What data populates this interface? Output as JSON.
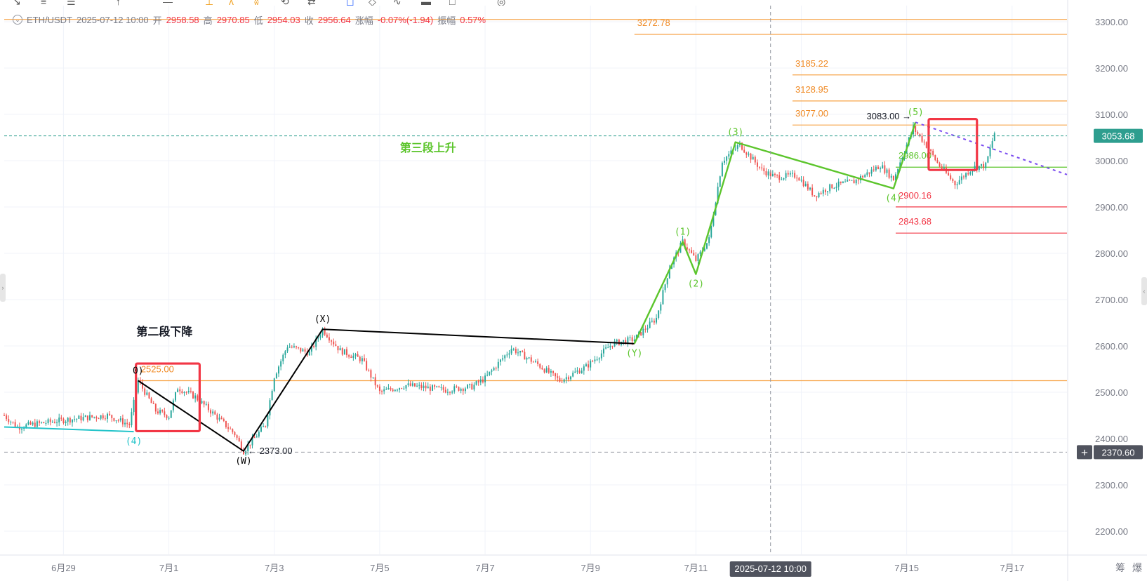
{
  "header": {
    "symbol": "ETH/USDT",
    "datetime": "2025-07-12 10:00",
    "open_label": "开",
    "open": "2958.58",
    "high_label": "高",
    "high": "2970.85",
    "low_label": "低",
    "low": "2954.03",
    "close_label": "收",
    "close": "2956.64",
    "change_label": "涨幅",
    "change": "-0.07%(-1.94)",
    "amplitude_label": "振幅",
    "amplitude": "0.57%"
  },
  "toolbar": {
    "icons": [
      "trend-line-icon",
      "horizontal-line-icon",
      "channel-icon",
      "cursor-icon",
      "brush-icon",
      "pattern-icon",
      "text-icon",
      "measure-icon",
      "undo-icon",
      "bookmark-icon",
      "alert-icon",
      "indicator-icon",
      "screenshot-icon",
      "settings-icon",
      "compare-icon",
      "calendar-icon"
    ]
  },
  "colors": {
    "up": "#26a69a",
    "down": "#ef5350",
    "fib_orange": "#f7a54a",
    "fib_text": "#f08a24",
    "support_red": "#f23645",
    "wave_green": "#5cc52c",
    "wave_black": "#000000",
    "trend_cyan": "#22c3c9",
    "box_red": "#f23645",
    "purple_dotted": "#7b4cf0",
    "grid": "#f0f3fa",
    "axis_text": "#787b86",
    "price_tag_green": "#2e9e8f",
    "crosshair_tag": "#50535e"
  },
  "chart_data": {
    "type": "candlestick",
    "title": "",
    "xlabel": "",
    "ylabel": "",
    "ylim": [
      2165,
      3320
    ],
    "y_ticks": [
      2200,
      2300,
      2400,
      2500,
      2600,
      2700,
      2800,
      2900,
      3000,
      3100,
      3200,
      3300
    ],
    "y_tick_labels": [
      "2200.00",
      "2300.00",
      "2400.00",
      "2500.00",
      "2600.00",
      "2700.00",
      "2800.00",
      "2900.00",
      "3000.00",
      "3100.00",
      "3200.00",
      "3300.00"
    ],
    "x_range": [
      "2025-06-27 21:00",
      "2025-07-18 01:00"
    ],
    "x_ticks": [
      {
        "t": "2025-06-29 00:00",
        "label": "6月29"
      },
      {
        "t": "2025-07-01 00:00",
        "label": "7月1"
      },
      {
        "t": "2025-07-03 00:00",
        "label": "7月3"
      },
      {
        "t": "2025-07-05 00:00",
        "label": "7月5"
      },
      {
        "t": "2025-07-07 00:00",
        "label": "7月7"
      },
      {
        "t": "2025-07-09 00:00",
        "label": "7月9"
      },
      {
        "t": "2025-07-11 00:00",
        "label": "7月11"
      },
      {
        "t": "2025-07-13 00:00",
        "label": "3"
      },
      {
        "t": "2025-07-15 00:00",
        "label": "7月15"
      },
      {
        "t": "2025-07-17 00:00",
        "label": "7月17"
      }
    ],
    "grid": true,
    "price_path": [
      [
        "2025-06-27 21:00",
        2450
      ],
      [
        "2025-06-28 03:00",
        2425
      ],
      [
        "2025-06-28 12:00",
        2432
      ],
      [
        "2025-06-29 00:00",
        2440
      ],
      [
        "2025-06-29 20:00",
        2450
      ],
      [
        "2025-06-30 06:00",
        2430
      ],
      [
        "2025-06-30 09:00",
        2500
      ],
      [
        "2025-06-30 10:00",
        2525
      ],
      [
        "2025-06-30 18:00",
        2460
      ],
      [
        "2025-07-01 00:00",
        2448
      ],
      [
        "2025-07-01 04:00",
        2510
      ],
      [
        "2025-07-01 12:00",
        2490
      ],
      [
        "2025-07-01 20:00",
        2455
      ],
      [
        "2025-07-02 06:00",
        2410
      ],
      [
        "2025-07-02 10:00",
        2373
      ],
      [
        "2025-07-02 20:00",
        2430
      ],
      [
        "2025-07-03 00:00",
        2535
      ],
      [
        "2025-07-03 06:00",
        2600
      ],
      [
        "2025-07-03 16:00",
        2585
      ],
      [
        "2025-07-03 22:00",
        2636
      ],
      [
        "2025-07-04 06:00",
        2590
      ],
      [
        "2025-07-04 16:00",
        2570
      ],
      [
        "2025-07-05 00:00",
        2500
      ],
      [
        "2025-07-05 12:00",
        2515
      ],
      [
        "2025-07-06 06:00",
        2505
      ],
      [
        "2025-07-06 18:00",
        2512
      ],
      [
        "2025-07-07 00:00",
        2530
      ],
      [
        "2025-07-07 12:00",
        2595
      ],
      [
        "2025-07-08 00:00",
        2560
      ],
      [
        "2025-07-08 10:00",
        2525
      ],
      [
        "2025-07-08 22:00",
        2555
      ],
      [
        "2025-07-09 10:00",
        2605
      ],
      [
        "2025-07-09 20:00",
        2615
      ],
      [
        "2025-07-10 06:00",
        2660
      ],
      [
        "2025-07-10 12:00",
        2770
      ],
      [
        "2025-07-10 18:00",
        2825
      ],
      [
        "2025-07-11 00:00",
        2785
      ],
      [
        "2025-07-11 06:00",
        2830
      ],
      [
        "2025-07-11 12:00",
        3000
      ],
      [
        "2025-07-11 20:00",
        3035
      ],
      [
        "2025-07-12 06:00",
        2980
      ],
      [
        "2025-07-12 12:00",
        2965
      ],
      [
        "2025-07-12 22:00",
        2968
      ],
      [
        "2025-07-13 06:00",
        2925
      ],
      [
        "2025-07-13 14:00",
        2945
      ],
      [
        "2025-07-14 00:00",
        2955
      ],
      [
        "2025-07-14 12:00",
        2990
      ],
      [
        "2025-07-14 18:00",
        2960
      ],
      [
        "2025-07-14 22:00",
        3010
      ],
      [
        "2025-07-15 03:00",
        3070
      ],
      [
        "2025-07-15 08:00",
        3040
      ],
      [
        "2025-07-15 14:00",
        2995
      ],
      [
        "2025-07-15 22:00",
        2950
      ],
      [
        "2025-07-16 06:00",
        2985
      ],
      [
        "2025-07-16 12:00",
        2990
      ],
      [
        "2025-07-16 16:00",
        3060
      ]
    ],
    "horizontal_levels": [
      {
        "price": 3272.78,
        "label": "3272.78",
        "from": "2025-07-09 20:00",
        "to": "2025-07-18 01:00",
        "kind": "fib"
      },
      {
        "price": 3305.0,
        "label": "",
        "from": "2025-06-27 21:00",
        "to": "2025-07-18 01:00",
        "kind": "fib"
      },
      {
        "price": 3185.22,
        "label": "3185.22",
        "from": "2025-07-12 20:00",
        "to": "2025-07-18 01:00",
        "kind": "fib"
      },
      {
        "price": 3128.95,
        "label": "3128.95",
        "from": "2025-07-12 20:00",
        "to": "2025-07-18 01:00",
        "kind": "fib"
      },
      {
        "price": 3077.0,
        "label": "3077.00",
        "from": "2025-07-12 20:00",
        "to": "2025-07-18 01:00",
        "kind": "fib"
      },
      {
        "price": 2525.0,
        "label": "2525.00",
        "from": "2025-06-30 10:00",
        "to": "2025-07-18 01:00",
        "kind": "fib"
      },
      {
        "price": 2986.0,
        "label": "2986.00",
        "from": "2025-07-14 19:00",
        "to": "2025-07-18 01:00",
        "kind": "green"
      },
      {
        "price": 2900.16,
        "label": "2900.16",
        "from": "2025-07-14 19:00",
        "to": "2025-07-18 01:00",
        "kind": "red"
      },
      {
        "price": 2843.68,
        "label": "2843.68",
        "from": "2025-07-14 19:00",
        "to": "2025-07-18 01:00",
        "kind": "red"
      }
    ],
    "wave_black": [
      [
        "2025-06-30 10:00",
        2525
      ],
      [
        "2025-07-02 10:00",
        2373
      ],
      [
        "2025-07-03 22:00",
        2636
      ],
      [
        "2025-07-09 20:00",
        2605
      ]
    ],
    "wave_green": [
      [
        "2025-07-09 20:00",
        2605
      ],
      [
        "2025-07-10 18:00",
        2825
      ],
      [
        "2025-07-11 00:00",
        2755
      ],
      [
        "2025-07-11 18:00",
        3040
      ],
      [
        "2025-07-14 18:00",
        2940
      ],
      [
        "2025-07-15 04:00",
        3083
      ]
    ],
    "trend_cyan": [
      [
        "2025-06-27 21:00",
        2425
      ],
      [
        "2025-06-30 08:00",
        2415
      ]
    ],
    "trend_purple_dotted": [
      [
        "2025-07-15 04:00",
        3083
      ],
      [
        "2025-07-18 01:00",
        2970
      ]
    ],
    "wave_labels": [
      {
        "t": "2025-06-30 10:00",
        "price": 2525,
        "text": "0)",
        "color": "black",
        "pos": "above"
      },
      {
        "t": "2025-06-30 08:00",
        "price": 2415,
        "text": "(4)",
        "color": "cyan",
        "pos": "below"
      },
      {
        "t": "2025-07-02 10:00",
        "price": 2373,
        "text": "(W)",
        "color": "black",
        "pos": "below"
      },
      {
        "t": "2025-07-03 22:00",
        "price": 2636,
        "text": "(X)",
        "color": "black",
        "pos": "above"
      },
      {
        "t": "2025-07-09 20:00",
        "price": 2605,
        "text": "(Y)",
        "color": "green",
        "pos": "below"
      },
      {
        "t": "2025-07-10 18:00",
        "price": 2825,
        "text": "(1)",
        "color": "green",
        "pos": "above"
      },
      {
        "t": "2025-07-11 00:00",
        "price": 2755,
        "text": "(2)",
        "color": "green",
        "pos": "below"
      },
      {
        "t": "2025-07-11 18:00",
        "price": 3040,
        "text": "(3)",
        "color": "green",
        "pos": "above"
      },
      {
        "t": "2025-07-14 18:00",
        "price": 2940,
        "text": "(4)",
        "color": "green",
        "pos": "below"
      },
      {
        "t": "2025-07-15 04:00",
        "price": 3083,
        "text": "(5)",
        "color": "green",
        "pos": "above"
      }
    ],
    "price_annotations": [
      {
        "t": "2025-07-02 10:00",
        "price": 2373,
        "text": "← 2373.00"
      },
      {
        "t": "2025-07-15 04:00",
        "price": 3083,
        "text": "3083.00 →"
      }
    ],
    "section_labels": [
      {
        "t": "2025-06-30 22:00",
        "price": 2623,
        "text": "第二段下降",
        "color": "black"
      },
      {
        "t": "2025-07-05 22:00",
        "price": 3020,
        "text": "第三段上升",
        "color": "green"
      }
    ],
    "boxes": [
      {
        "t1": "2025-06-30 09:00",
        "t2": "2025-07-01 14:00",
        "p1": 2416,
        "p2": 2562
      },
      {
        "t1": "2025-07-15 10:00",
        "t2": "2025-07-16 08:00",
        "p1": 2980,
        "p2": 3090
      }
    ],
    "current_price": {
      "price": 3053.68,
      "label": "3053.68"
    },
    "crosshair": {
      "t": "2025-07-12 10:00",
      "price": 2370.6,
      "time_label": "2025-07-12 10:00",
      "price_label": "2370.60"
    },
    "axis_corner_labels": [
      "筹",
      "爆"
    ]
  }
}
